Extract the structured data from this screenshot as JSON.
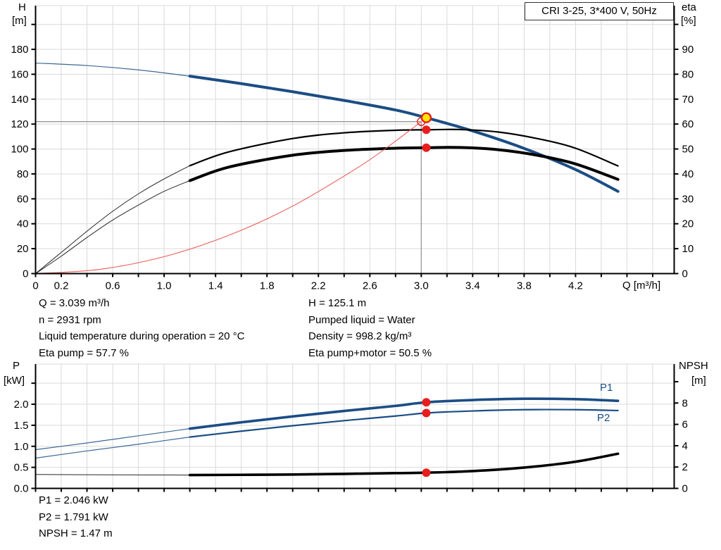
{
  "title_box": {
    "label": "CRI 3-25, 3*400 V, 50Hz"
  },
  "info": {
    "top_left": [
      "Q = 3.039 m³/h",
      "n = 2931 rpm",
      "Liquid temperature during operation = 20 °C",
      "Eta pump = 57.7 %"
    ],
    "top_right": [
      "H = 125.1 m",
      "Pumped liquid = Water",
      "Density = 998.2 kg/m³",
      "Eta pump+motor = 50.5 %"
    ],
    "bottom": [
      "P1 = 2.046 kW",
      "P2 = 1.791 kW",
      "NPSH = 1.47 m"
    ]
  },
  "colors": {
    "curve_blue": "#1b4d84",
    "curve_black": "#000000",
    "system_red": "#e8534d",
    "marker_red": "#e81e1e",
    "marker_yellow": "#ffe600",
    "grid": "#d9d9d9",
    "crosshair": "#999999",
    "axis": "#000000"
  },
  "chart_data": [
    {
      "id": "qh-eta",
      "type": "line",
      "title": "CRI 3-25, 3*400 V, 50Hz",
      "x_axis": {
        "label": "Q [m³/h]",
        "min": 0,
        "max": 4.97,
        "tick_step": 0.2,
        "tick_max": 4.8,
        "labels": [
          [
            0,
            "0"
          ],
          [
            0.2,
            "0.2"
          ],
          [
            0.6,
            "0.6"
          ],
          [
            1.0,
            "1.0"
          ],
          [
            1.4,
            "1.4"
          ],
          [
            1.8,
            "1.8"
          ],
          [
            2.2,
            "2.2"
          ],
          [
            2.6,
            "2.6"
          ],
          [
            3.0,
            "3.0"
          ],
          [
            3.4,
            "3.4"
          ],
          [
            3.8,
            "3.8"
          ],
          [
            4.2,
            "4.2"
          ]
        ]
      },
      "left_axis": {
        "title": "H",
        "unit": "[m]",
        "min": 0,
        "max": 215,
        "tick_step": 20,
        "tick_max": 200,
        "labels": [
          [
            0,
            "0"
          ],
          [
            20,
            "20"
          ],
          [
            40,
            "40"
          ],
          [
            60,
            "60"
          ],
          [
            80,
            "80"
          ],
          [
            100,
            "100"
          ],
          [
            120,
            "120"
          ],
          [
            140,
            "140"
          ],
          [
            160,
            "160"
          ],
          [
            180,
            "180"
          ]
        ]
      },
      "right_axis": {
        "title": "eta",
        "unit": "[%]",
        "min": 0,
        "max": 107,
        "tick_step": 10,
        "tick_max": 100,
        "labels": [
          [
            0,
            "0"
          ],
          [
            10,
            "10"
          ],
          [
            20,
            "20"
          ],
          [
            30,
            "30"
          ],
          [
            40,
            "40"
          ],
          [
            50,
            "50"
          ],
          [
            60,
            "60"
          ],
          [
            70,
            "70"
          ],
          [
            80,
            "80"
          ],
          [
            90,
            "90"
          ]
        ]
      },
      "series": [
        {
          "name": "QH curve",
          "axis": "left",
          "color": "blue",
          "split_q": 1.2,
          "thin_width": 1.2,
          "thick_width": 4,
          "points": [
            [
              0,
              169
            ],
            [
              0.4,
              167
            ],
            [
              0.8,
              163.5
            ],
            [
              1.2,
              158.5
            ],
            [
              1.6,
              152.5
            ],
            [
              2.0,
              146
            ],
            [
              2.4,
              139
            ],
            [
              2.8,
              131.3
            ],
            [
              3.039,
              125.1
            ],
            [
              3.4,
              114.5
            ],
            [
              3.8,
              100.5
            ],
            [
              4.2,
              83.5
            ],
            [
              4.53,
              66
            ]
          ]
        },
        {
          "name": "Eta pump",
          "axis": "right",
          "color": "black",
          "split_q": 1.2,
          "thin_width": 1,
          "thick_width": 2.2,
          "points": [
            [
              0,
              0
            ],
            [
              0.2,
              8.5
            ],
            [
              0.4,
              17
            ],
            [
              0.6,
              25
            ],
            [
              0.8,
              32
            ],
            [
              1.0,
              38
            ],
            [
              1.2,
              43.3
            ],
            [
              1.5,
              48.8
            ],
            [
              2.0,
              54.2
            ],
            [
              2.4,
              56.5
            ],
            [
              2.8,
              57.5
            ],
            [
              3.039,
              57.7
            ],
            [
              3.3,
              57.8
            ],
            [
              3.6,
              56.8
            ],
            [
              3.9,
              54.2
            ],
            [
              4.2,
              50.3
            ],
            [
              4.53,
              43.2
            ]
          ]
        },
        {
          "name": "Eta pump+motor",
          "axis": "right",
          "color": "black",
          "split_q": 1.2,
          "thin_width": 1,
          "thick_width": 4,
          "points": [
            [
              0,
              0
            ],
            [
              0.2,
              7
            ],
            [
              0.4,
              14.5
            ],
            [
              0.6,
              21.5
            ],
            [
              0.8,
              27.5
            ],
            [
              1.0,
              33
            ],
            [
              1.2,
              37.3
            ],
            [
              1.5,
              42.7
            ],
            [
              2.0,
              47.5
            ],
            [
              2.4,
              49.4
            ],
            [
              2.8,
              50.3
            ],
            [
              3.039,
              50.5
            ],
            [
              3.3,
              50.6
            ],
            [
              3.6,
              49.7
            ],
            [
              3.9,
              47.5
            ],
            [
              4.2,
              44
            ],
            [
              4.53,
              37.8
            ]
          ]
        },
        {
          "name": "System curve",
          "axis": "left",
          "color": "red",
          "split_q": 99,
          "thin_width": 1.2,
          "thick_width": 1.2,
          "points": [
            [
              0,
              0
            ],
            [
              0.5,
              3.4
            ],
            [
              1.0,
              13.6
            ],
            [
              1.5,
              30.6
            ],
            [
              2.0,
              54.2
            ],
            [
              2.5,
              84.7
            ],
            [
              2.75,
              102.5
            ],
            [
              3.0,
              122
            ]
          ]
        }
      ],
      "crosshair": {
        "q": 3.0,
        "value": 122,
        "axis": "left"
      },
      "markers": [
        {
          "type": "open",
          "axis": "left",
          "q": 3.0,
          "value": 122,
          "meaning": "requested duty point"
        },
        {
          "type": "duty",
          "axis": "left",
          "q": 3.039,
          "value": 125.1,
          "meaning": "actual duty point H = 125.1 m"
        },
        {
          "type": "dot",
          "axis": "right",
          "q": 3.039,
          "value": 57.7,
          "meaning": "Eta pump = 57.7 %"
        },
        {
          "type": "dot",
          "axis": "right",
          "q": 3.039,
          "value": 50.5,
          "meaning": "Eta pump+motor = 50.5 %"
        }
      ]
    },
    {
      "id": "power-npsh",
      "type": "line",
      "x_axis": {
        "label": "",
        "min": 0,
        "max": 4.97,
        "tick_step": 0.2,
        "tick_max": 4.8,
        "labels": []
      },
      "left_axis": {
        "title": "P",
        "unit": "[kW]",
        "min": 0,
        "max": 2.95,
        "tick_step": 0.5,
        "tick_max": 2.5,
        "labels": [
          [
            0,
            "0.0"
          ],
          [
            0.5,
            "0.5"
          ],
          [
            1.0,
            "1.0"
          ],
          [
            1.5,
            "1.5"
          ],
          [
            2.0,
            "2.0"
          ]
        ]
      },
      "right_axis": {
        "title": "NPSH",
        "unit": "[m]",
        "min": 0,
        "max": 11.6,
        "tick_step": 2,
        "tick_max": 10,
        "labels": [
          [
            0,
            "0"
          ],
          [
            2,
            "2"
          ],
          [
            4,
            "4"
          ],
          [
            6,
            "6"
          ],
          [
            8,
            "8"
          ]
        ]
      },
      "series": [
        {
          "name": "P1",
          "axis": "left",
          "color": "blue",
          "split_q": 1.2,
          "thin_width": 1.2,
          "thick_width": 3.6,
          "points": [
            [
              0,
              0.92
            ],
            [
              0.4,
              1.08
            ],
            [
              0.8,
              1.25
            ],
            [
              1.2,
              1.42
            ],
            [
              1.6,
              1.57
            ],
            [
              2.0,
              1.71
            ],
            [
              2.4,
              1.84
            ],
            [
              2.8,
              1.96
            ],
            [
              3.039,
              2.046
            ],
            [
              3.4,
              2.1
            ],
            [
              3.8,
              2.13
            ],
            [
              4.2,
              2.12
            ],
            [
              4.53,
              2.08
            ]
          ]
        },
        {
          "name": "P2",
          "axis": "left",
          "color": "blue",
          "split_q": 1.2,
          "thin_width": 1.2,
          "thick_width": 2.2,
          "points": [
            [
              0,
              0.72
            ],
            [
              0.4,
              0.89
            ],
            [
              0.8,
              1.05
            ],
            [
              1.2,
              1.22
            ],
            [
              1.6,
              1.36
            ],
            [
              2.0,
              1.49
            ],
            [
              2.4,
              1.61
            ],
            [
              2.8,
              1.72
            ],
            [
              3.039,
              1.791
            ],
            [
              3.4,
              1.84
            ],
            [
              3.8,
              1.87
            ],
            [
              4.2,
              1.87
            ],
            [
              4.53,
              1.85
            ]
          ]
        },
        {
          "name": "NPSH",
          "axis": "right",
          "color": "black",
          "split_q": 1.2,
          "thin_width": 1,
          "thick_width": 3.6,
          "points": [
            [
              0,
              1.3
            ],
            [
              0.6,
              1.27
            ],
            [
              1.2,
              1.25
            ],
            [
              1.6,
              1.27
            ],
            [
              2.0,
              1.3
            ],
            [
              2.4,
              1.36
            ],
            [
              2.8,
              1.43
            ],
            [
              3.039,
              1.47
            ],
            [
              3.4,
              1.62
            ],
            [
              3.8,
              1.95
            ],
            [
              4.2,
              2.5
            ],
            [
              4.53,
              3.25
            ]
          ]
        }
      ],
      "markers": [
        {
          "type": "dot",
          "axis": "left",
          "q": 3.039,
          "value": 2.046,
          "meaning": "P1 = 2.046 kW"
        },
        {
          "type": "dot",
          "axis": "left",
          "q": 3.039,
          "value": 1.791,
          "meaning": "P2 = 1.791 kW"
        },
        {
          "type": "dot",
          "axis": "right",
          "q": 3.039,
          "value": 1.47,
          "meaning": "NPSH = 1.47 m"
        }
      ]
    }
  ]
}
